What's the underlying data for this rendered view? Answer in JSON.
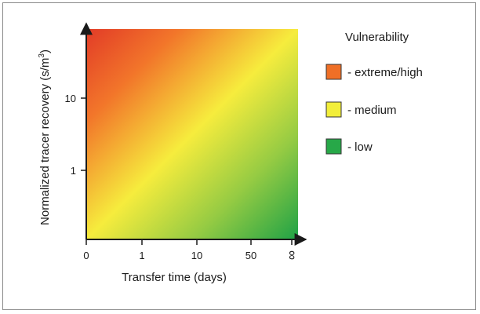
{
  "chart_data": {
    "type": "heatmap",
    "title": "",
    "xlabel": "Transfer time (days)",
    "ylabel": "Normalized tracer recovery (s/m",
    "ylabel_sup": "3",
    "ylabel_close": ")",
    "x_ticks": [
      "0",
      "1",
      "10",
      "50",
      "∞"
    ],
    "y_ticks": [
      "1",
      "10"
    ],
    "legend": {
      "title": "Vulnerability",
      "placement": "right",
      "items": [
        {
          "label": "- extreme/high",
          "color": "#ef6f26"
        },
        {
          "label": "- medium",
          "color": "#f2ee3a"
        },
        {
          "label": "- low",
          "color": "#27a848"
        }
      ]
    },
    "gradient": {
      "direction": "top-left to bottom-right",
      "stops": [
        {
          "offset": 0,
          "color": "#e23b27"
        },
        {
          "offset": 0.22,
          "color": "#f2762a"
        },
        {
          "offset": 0.5,
          "color": "#f6ec3d"
        },
        {
          "offset": 0.75,
          "color": "#95cb43"
        },
        {
          "offset": 1,
          "color": "#1fa246"
        }
      ]
    },
    "grid": false
  }
}
